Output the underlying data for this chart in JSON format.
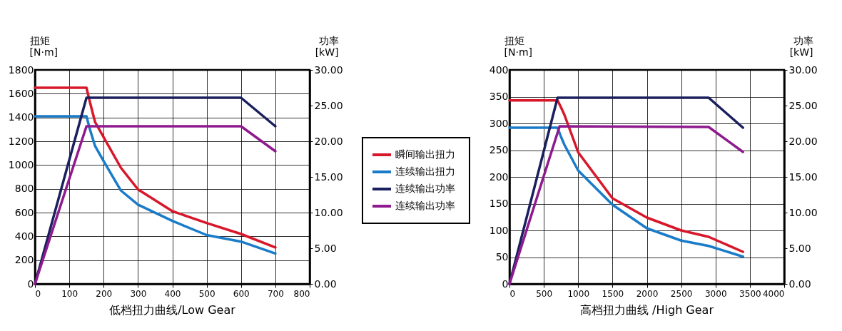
{
  "chart_data": [
    {
      "type": "line",
      "title": "低档扭力曲线/Low Gear",
      "ylabel": "扭矩\n[N·m]",
      "y2label": "功率\n[kW]",
      "xlim": [
        0,
        800
      ],
      "xticks": [
        0,
        100,
        200,
        300,
        400,
        500,
        600,
        700,
        800
      ],
      "ylim": [
        0,
        1800
      ],
      "yticks": [
        0,
        200,
        400,
        600,
        800,
        1000,
        1200,
        1400,
        1600,
        1800
      ],
      "y2lim": [
        0,
        30
      ],
      "y2ticks": [
        {
          "value": 0,
          "label": "0.00"
        },
        {
          "value": 5,
          "label": "5.00"
        },
        {
          "value": 10,
          "label": "10.00"
        },
        {
          "value": 15,
          "label": "15.00"
        },
        {
          "value": 20,
          "label": "20.00"
        },
        {
          "value": 25,
          "label": "25.00"
        },
        {
          "value": 30,
          "label": "30.00"
        }
      ],
      "grid": true,
      "legend": "right",
      "line_style": "solid",
      "marker": "none",
      "series": [
        {
          "name": "瞬间输出扭力",
          "color": "#d7182a",
          "x": [
            0,
            150,
            160,
            175,
            200,
            250,
            300,
            400,
            500,
            600,
            700
          ],
          "values": [
            1650,
            1650,
            1530,
            1362,
            1234,
            978,
            795,
            612,
            512,
            420,
            307
          ]
        },
        {
          "name": "连续输出扭力",
          "color": "#1a7cc8",
          "x": [
            0,
            150,
            160,
            175,
            200,
            250,
            300,
            400,
            500,
            600,
            700
          ],
          "values": [
            1410,
            1410,
            1300,
            1160,
            1033,
            786,
            667,
            530,
            411,
            356,
            256
          ]
        },
        {
          "name": "连续输出功率",
          "color": "#1a1f5e",
          "axis": "y2",
          "x": [
            0,
            150,
            600,
            700
          ],
          "values": [
            0,
            26.1,
            26.1,
            22.1
          ]
        },
        {
          "name": "连续输出功率",
          "color": "#8e1a8e",
          "axis": "y2",
          "x": [
            0,
            150,
            600,
            700
          ],
          "values": [
            0,
            22.1,
            22.1,
            18.6
          ]
        }
      ]
    },
    {
      "type": "line",
      "title": "高档扭力曲线 /High Gear",
      "ylabel": "扭矩\n[N·m]",
      "y2label": "功率\n[kW]",
      "xlim": [
        0,
        4000
      ],
      "xticks": [
        0,
        500,
        1000,
        1500,
        2000,
        2500,
        3000,
        3500,
        4000
      ],
      "ylim": [
        0,
        400
      ],
      "yticks": [
        0,
        50,
        100,
        150,
        200,
        250,
        300,
        350,
        400
      ],
      "y2lim": [
        0,
        30
      ],
      "y2ticks": [
        {
          "value": 0,
          "label": "0.00"
        },
        {
          "value": 5,
          "label": "5.00"
        },
        {
          "value": 10,
          "label": "10.00"
        },
        {
          "value": 15,
          "label": "15.00"
        },
        {
          "value": 20,
          "label": "20.00"
        },
        {
          "value": 25,
          "label": "25.00"
        },
        {
          "value": 30,
          "label": "30.00"
        }
      ],
      "grid": true,
      "line_style": "solid",
      "marker": "none",
      "series": [
        {
          "color": "#d7182a",
          "x": [
            0,
            700,
            750,
            800,
            1000,
            1500,
            2000,
            2500,
            2900,
            3400
          ],
          "values": [
            343,
            343,
            330,
            316,
            246,
            160,
            124,
            100,
            88,
            60
          ]
        },
        {
          "color": "#1a7cc8",
          "x": [
            0,
            700,
            750,
            800,
            1000,
            1500,
            2000,
            2500,
            2900,
            3400
          ],
          "values": [
            292,
            292,
            275,
            260,
            212,
            148,
            104,
            81,
            71,
            51
          ]
        },
        {
          "color": "#1a1f5e",
          "axis": "y2",
          "x": [
            0,
            700,
            2900,
            3400
          ],
          "values": [
            0,
            26.1,
            26.1,
            21.9
          ]
        },
        {
          "color": "#8e1a8e",
          "axis": "y2",
          "x": [
            0,
            730,
            2900,
            3400
          ],
          "values": [
            0,
            22.1,
            22.0,
            18.5
          ]
        }
      ]
    }
  ]
}
